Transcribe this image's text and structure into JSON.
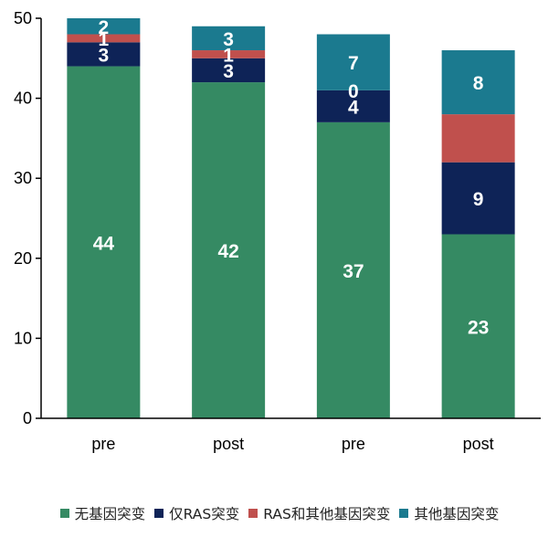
{
  "chart_data": {
    "type": "bar",
    "stacked": true,
    "categories": [
      "pre",
      "post",
      "pre",
      "post"
    ],
    "ylim": [
      0,
      50
    ],
    "yticks": [
      0,
      10,
      20,
      30,
      40,
      50
    ],
    "grid": false,
    "legend_position": "bottom",
    "series": [
      {
        "name": "无基因突变",
        "color": "#358A63",
        "values": [
          44,
          42,
          37,
          23
        ],
        "labels": [
          "44",
          "42",
          "37",
          "23"
        ]
      },
      {
        "name": "仅RAS突变",
        "color": "#0E2357",
        "values": [
          3,
          3,
          4,
          9
        ],
        "labels": [
          "3",
          "3",
          "4",
          "9"
        ]
      },
      {
        "name": "RAS和其他基因突变",
        "color": "#C0504D",
        "values": [
          1,
          1,
          0,
          6
        ],
        "labels": [
          "1",
          "1",
          "0",
          ""
        ]
      },
      {
        "name": "其他基因突变",
        "color": "#1B7A8F",
        "values": [
          2,
          3,
          7,
          8
        ],
        "labels": [
          "2",
          "3",
          "7",
          "8"
        ]
      }
    ]
  }
}
